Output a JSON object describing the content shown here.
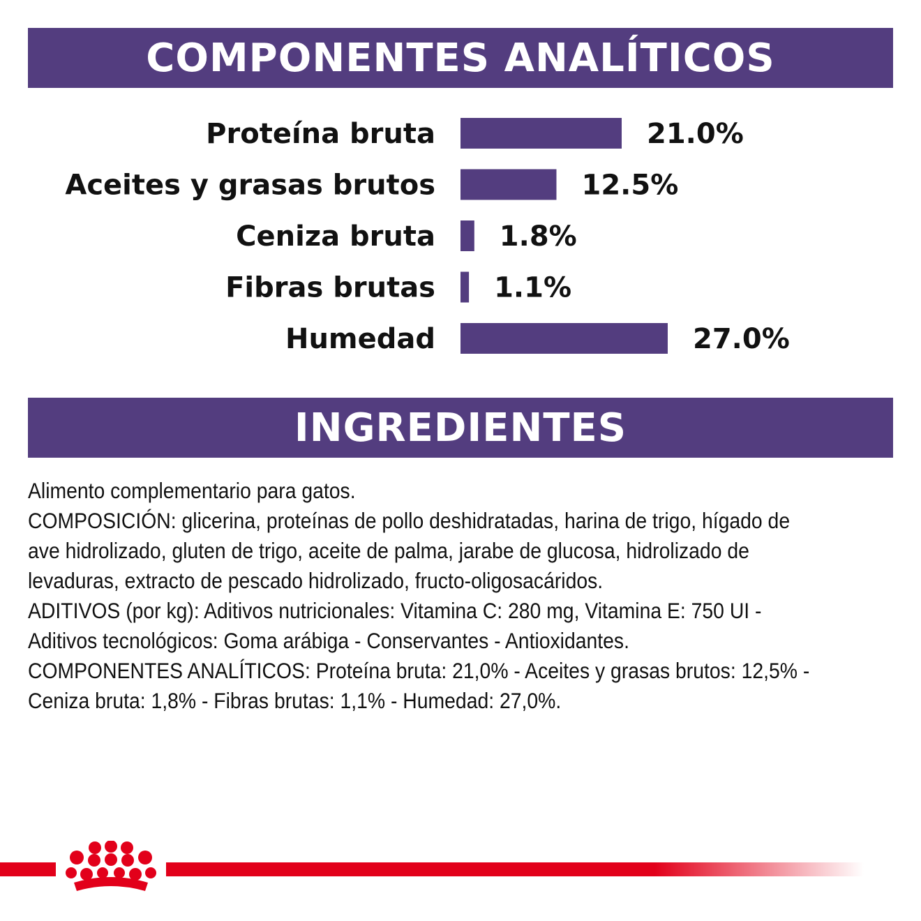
{
  "colors": {
    "accent": "#533d7f",
    "brand_red": "#e2001a",
    "text": "#111111"
  },
  "analytic_section": {
    "title": "COMPONENTES ANALÍTICOS"
  },
  "ingredients_section": {
    "title": "INGREDIENTES",
    "paragraphs": [
      "Alimento complementario para gatos.",
      "COMPOSICIÓN: glicerina, proteínas de pollo deshidratadas, harina de trigo, hígado de ave hidrolizado, gluten de trigo, aceite de palma, jarabe de glucosa, hidrolizado de levaduras, extracto de pescado hidrolizado, fructo-oligosacáridos.",
      "ADITIVOS (por kg): Aditivos nutricionales: Vitamina C: 280 mg, Vitamina E: 750 UI - Aditivos tecnológicos: Goma arábiga - Conservantes - Antioxidantes.",
      "COMPONENTES ANALÍTICOS: Proteína bruta: 21,0% - Aceites y grasas brutos: 12,5% - Ceniza bruta: 1,8% - Fibras brutas: 1,1% - Humedad: 27,0%."
    ]
  },
  "logo": {
    "icon": "royal-canin-crown-icon"
  },
  "chart_data": {
    "type": "bar",
    "orientation": "horizontal",
    "categories": [
      "Proteína bruta",
      "Aceites y grasas brutos",
      "Ceniza bruta",
      "Fibras brutas",
      "Humedad"
    ],
    "values": [
      21.0,
      12.5,
      1.8,
      1.1,
      27.0
    ],
    "value_labels": [
      "21.0%",
      "12.5%",
      "1.8%",
      "1.1%",
      "27.0%"
    ],
    "unit": "%",
    "xlim": [
      0,
      27.0
    ],
    "grid": false,
    "legend": "none",
    "bar_color": "#533d7f"
  }
}
